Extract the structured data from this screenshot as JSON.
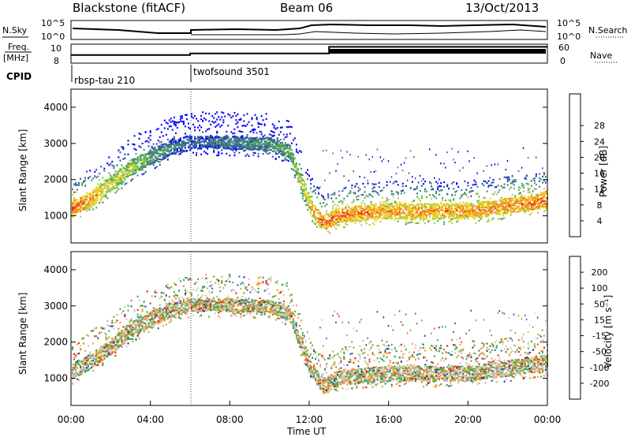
{
  "header": {
    "station": "Blackstone (fitACF)",
    "beam": "Beam 06",
    "date": "13/Oct/2013"
  },
  "status_panel": {
    "nsky_label": "N.Sky",
    "nsky_ticks": [
      "10^5",
      "10^0"
    ],
    "nsearch_label": "N.Search",
    "nsearch_ticks": [
      "10^5",
      "10^0"
    ],
    "freq_label": "Freq.",
    "freq_unit": "[MHz]",
    "freq_ticks": [
      "10",
      "8"
    ],
    "nave_label": "Nave",
    "nave_ticks": [
      "60",
      "0"
    ],
    "cpid_label": "CPID",
    "cpid_segments": [
      {
        "name": "rbsp-tau 210",
        "start_hour": 0
      },
      {
        "name": "twofsound 3501",
        "start_hour": 6
      }
    ],
    "freq_mhz_series": [
      {
        "hour": 0,
        "value": 9.0
      },
      {
        "hour": 6,
        "value": 9.0
      },
      {
        "hour": 6,
        "value": 9.3
      },
      {
        "hour": 13,
        "value": 9.3
      },
      {
        "hour": 13,
        "value": 10.5
      },
      {
        "hour": 24,
        "value": 10.5
      }
    ]
  },
  "chart_data": [
    {
      "type": "heatmap",
      "name": "power",
      "ylabel": "Slant Range [km]",
      "yticks": [
        "1000",
        "2000",
        "3000",
        "4000"
      ],
      "ylim": [
        250,
        4500
      ],
      "xlim": [
        0,
        24
      ],
      "colorbar_label": "Power [dB]",
      "colorbar_ticks": [
        "4",
        "8",
        "12",
        "16",
        "20",
        "24",
        "28"
      ],
      "colorbar_range": [
        0,
        30
      ],
      "colors": [
        "#0000ff",
        "#2f4fa8",
        "#3f7f7f",
        "#4fa860",
        "#a8d040",
        "#f0d020",
        "#f08020",
        "#e83010",
        "#ff0000"
      ],
      "backscatter_band": [
        {
          "hour": 0.0,
          "range_km": 1200,
          "power_db": 26
        },
        {
          "hour": 1.0,
          "range_km": 1500,
          "power_db": 24
        },
        {
          "hour": 2.0,
          "range_km": 1900,
          "power_db": 20
        },
        {
          "hour": 3.0,
          "range_km": 2350,
          "power_db": 18
        },
        {
          "hour": 4.0,
          "range_km": 2650,
          "power_db": 14
        },
        {
          "hour": 5.0,
          "range_km": 2900,
          "power_db": 10
        },
        {
          "hour": 6.0,
          "range_km": 3050,
          "power_db": 8
        },
        {
          "hour": 8.0,
          "range_km": 3050,
          "power_db": 10
        },
        {
          "hour": 10.0,
          "range_km": 3000,
          "power_db": 12
        },
        {
          "hour": 11.0,
          "range_km": 2800,
          "power_db": 14
        },
        {
          "hour": 12.0,
          "range_km": 1300,
          "power_db": 22
        },
        {
          "hour": 12.7,
          "range_km": 800,
          "power_db": 26
        },
        {
          "hour": 13.5,
          "range_km": 1050,
          "power_db": 26
        },
        {
          "hour": 16.0,
          "range_km": 1150,
          "power_db": 24
        },
        {
          "hour": 20.0,
          "range_km": 1150,
          "power_db": 24
        },
        {
          "hour": 24.0,
          "range_km": 1450,
          "power_db": 26
        }
      ]
    },
    {
      "type": "heatmap",
      "name": "velocity",
      "ylabel": "Slant Range [km]",
      "yticks": [
        "1000",
        "2000",
        "3000",
        "4000"
      ],
      "ylim": [
        250,
        4500
      ],
      "xlim": [
        0,
        24
      ],
      "xticks": [
        "00:00",
        "04:00",
        "08:00",
        "12:00",
        "16:00",
        "20:00",
        "00:00"
      ],
      "xlabel": "Time UT",
      "colorbar_label": "Velocity [m s⁻¹]",
      "colorbar_ticks": [
        "200",
        "100",
        "50",
        "15",
        "-15",
        "-50",
        "-100",
        "-200"
      ],
      "colorbar_range": [
        -250,
        250
      ],
      "colors": [
        "#1a2ca8",
        "#3860c0",
        "#2e7d50",
        "#40b040",
        "#c8c8c8",
        "#f0a030",
        "#f07020",
        "#e83010",
        "#ff0000"
      ]
    }
  ]
}
